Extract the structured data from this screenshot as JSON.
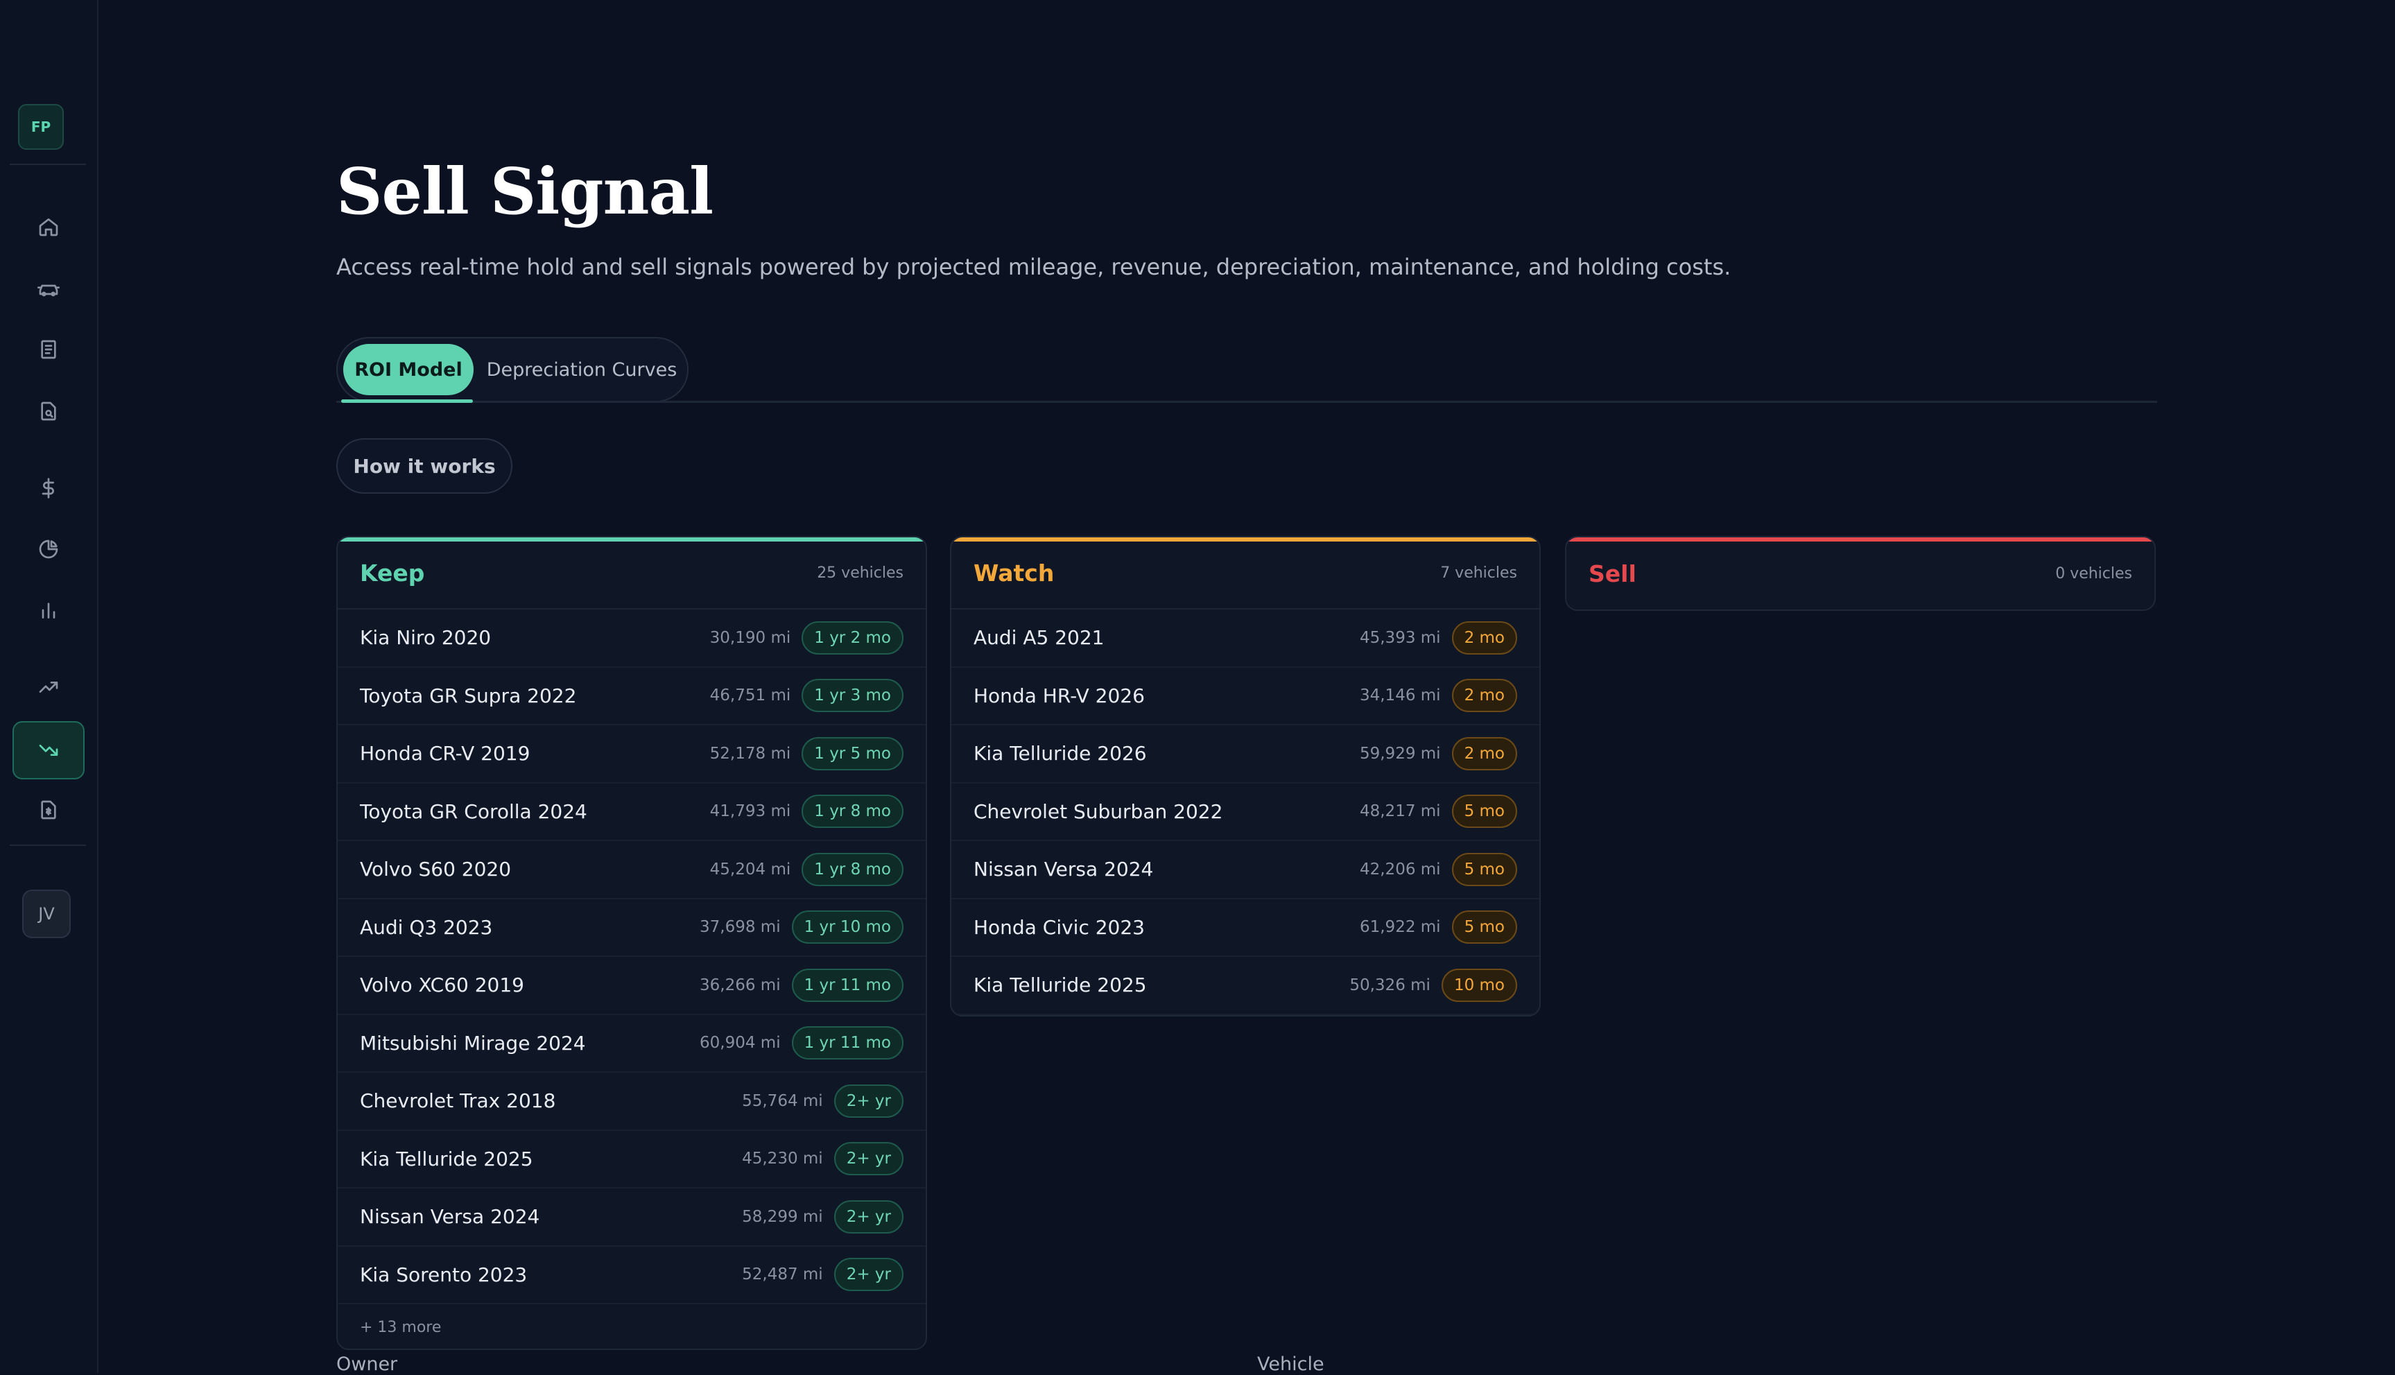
{
  "sidebar": {
    "org_badge": "FP",
    "user_avatar": "JV",
    "items": [
      {
        "icon": "home-icon"
      },
      {
        "icon": "car-icon"
      },
      {
        "icon": "document-icon"
      },
      {
        "icon": "document-search-icon"
      },
      {
        "icon": "dollar-icon"
      },
      {
        "icon": "pie-chart-icon"
      },
      {
        "icon": "bar-chart-icon"
      },
      {
        "icon": "trending-up-icon"
      },
      {
        "icon": "trending-down-icon",
        "active": true
      },
      {
        "icon": "invoice-icon"
      }
    ]
  },
  "page": {
    "title": "Sell Signal",
    "subtitle": "Access real-time hold and sell signals powered by projected mileage, revenue, depreciation, maintenance, and holding costs."
  },
  "tabs": [
    {
      "label": "ROI Model",
      "active": true
    },
    {
      "label": "Depreciation Curves",
      "active": false
    }
  ],
  "how_it_works": "How it works",
  "columns": {
    "keep": {
      "title": "Keep",
      "count": "25 vehicles",
      "accent": "#5fd3af",
      "rows": [
        {
          "name": "Kia Niro 2020",
          "miles": "30,190 mi",
          "badge": "1 yr 2 mo"
        },
        {
          "name": "Toyota GR Supra 2022",
          "miles": "46,751 mi",
          "badge": "1 yr 3 mo"
        },
        {
          "name": "Honda CR-V 2019",
          "miles": "52,178 mi",
          "badge": "1 yr 5 mo"
        },
        {
          "name": "Toyota GR Corolla 2024",
          "miles": "41,793 mi",
          "badge": "1 yr 8 mo"
        },
        {
          "name": "Volvo S60 2020",
          "miles": "45,204 mi",
          "badge": "1 yr 8 mo"
        },
        {
          "name": "Audi Q3 2023",
          "miles": "37,698 mi",
          "badge": "1 yr 10 mo"
        },
        {
          "name": "Volvo XC60 2019",
          "miles": "36,266 mi",
          "badge": "1 yr 11 mo"
        },
        {
          "name": "Mitsubishi Mirage 2024",
          "miles": "60,904 mi",
          "badge": "1 yr 11 mo"
        },
        {
          "name": "Chevrolet Trax 2018",
          "miles": "55,764 mi",
          "badge": "2+ yr"
        },
        {
          "name": "Kia Telluride 2025",
          "miles": "45,230 mi",
          "badge": "2+ yr"
        },
        {
          "name": "Nissan Versa 2024",
          "miles": "58,299 mi",
          "badge": "2+ yr"
        },
        {
          "name": "Kia Sorento 2023",
          "miles": "52,487 mi",
          "badge": "2+ yr"
        }
      ],
      "more": "+ 13 more"
    },
    "watch": {
      "title": "Watch",
      "count": "7 vehicles",
      "accent": "#f5a83a",
      "rows": [
        {
          "name": "Audi A5 2021",
          "miles": "45,393 mi",
          "badge": "2 mo"
        },
        {
          "name": "Honda HR-V 2026",
          "miles": "34,146 mi",
          "badge": "2 mo"
        },
        {
          "name": "Kia Telluride 2026",
          "miles": "59,929 mi",
          "badge": "2 mo"
        },
        {
          "name": "Chevrolet Suburban 2022",
          "miles": "48,217 mi",
          "badge": "5 mo"
        },
        {
          "name": "Nissan Versa 2024",
          "miles": "42,206 mi",
          "badge": "5 mo"
        },
        {
          "name": "Honda Civic 2023",
          "miles": "61,922 mi",
          "badge": "5 mo"
        },
        {
          "name": "Kia Telluride 2025",
          "miles": "50,326 mi",
          "badge": "10 mo"
        }
      ]
    },
    "sell": {
      "title": "Sell",
      "count": "0 vehicles",
      "accent": "#e5484d",
      "rows": []
    }
  },
  "table_headers": {
    "owner": "Owner",
    "vehicle": "Vehicle"
  }
}
